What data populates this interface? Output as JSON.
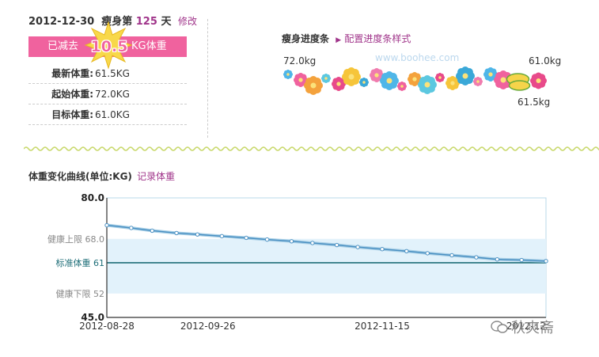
{
  "header": {
    "date": "2012-12-30",
    "days_prefix": "瘦身第",
    "days_value": "125",
    "days_suffix": "天",
    "edit_label": "修改"
  },
  "lost": {
    "prefix": "已减去",
    "value": "10.5",
    "suffix": "KG体重"
  },
  "stats": [
    {
      "label": "最新体重:",
      "value": "61.5KG"
    },
    {
      "label": "起始体重:",
      "value": "72.0KG"
    },
    {
      "label": "目标体重:",
      "value": "61.0KG"
    }
  ],
  "progress": {
    "title": "瘦身进度条",
    "config_link": "配置进度条样式",
    "start_weight": "72.0kg",
    "target_weight": "61.0kg",
    "current_weight": "61.5kg",
    "watermark": "www.boohee.com",
    "fraction_complete": 0.955
  },
  "curve": {
    "title": "体重变化曲线(单位:KG)",
    "record_link": "记录体重"
  },
  "chart_data": {
    "type": "line",
    "ylim": [
      45.0,
      80.0
    ],
    "y_ticks": [
      {
        "value": 80.0,
        "label": "80.0",
        "prefix": ""
      },
      {
        "value": 68.0,
        "label": "68.0",
        "prefix": "健康上限"
      },
      {
        "value": 61.0,
        "label": "61",
        "prefix": "标准体重"
      },
      {
        "value": 52.0,
        "label": "52",
        "prefix": "健康下限"
      },
      {
        "value": 45.0,
        "label": "45.0",
        "prefix": ""
      }
    ],
    "x_ticks": [
      {
        "day": 0,
        "label": "2012-08-28"
      },
      {
        "day": 29,
        "label": "2012-09-26"
      },
      {
        "day": 79,
        "label": "2012-11-15"
      },
      {
        "day": 126,
        "label": "2012-12"
      }
    ],
    "healthy_band": [
      52.0,
      68.0
    ],
    "target_line": 61.0,
    "x_range_days": [
      0,
      126
    ],
    "series": [
      {
        "values": [
          {
            "day": 0,
            "weight": 72.0
          },
          {
            "day": 7,
            "weight": 71.2
          },
          {
            "day": 13,
            "weight": 70.4
          },
          {
            "day": 20,
            "weight": 69.7
          },
          {
            "day": 26,
            "weight": 69.3
          },
          {
            "day": 33,
            "weight": 68.8
          },
          {
            "day": 40,
            "weight": 68.3
          },
          {
            "day": 46,
            "weight": 67.8
          },
          {
            "day": 53,
            "weight": 67.3
          },
          {
            "day": 59,
            "weight": 66.8
          },
          {
            "day": 66,
            "weight": 66.2
          },
          {
            "day": 72,
            "weight": 65.6
          },
          {
            "day": 79,
            "weight": 65.0
          },
          {
            "day": 86,
            "weight": 64.4
          },
          {
            "day": 92,
            "weight": 63.8
          },
          {
            "day": 99,
            "weight": 63.2
          },
          {
            "day": 106,
            "weight": 62.6
          },
          {
            "day": 112,
            "weight": 62.0
          },
          {
            "day": 119,
            "weight": 61.8
          },
          {
            "day": 126,
            "weight": 61.5
          }
        ]
      }
    ]
  },
  "footer": {
    "watermark": "秋爽斋"
  }
}
